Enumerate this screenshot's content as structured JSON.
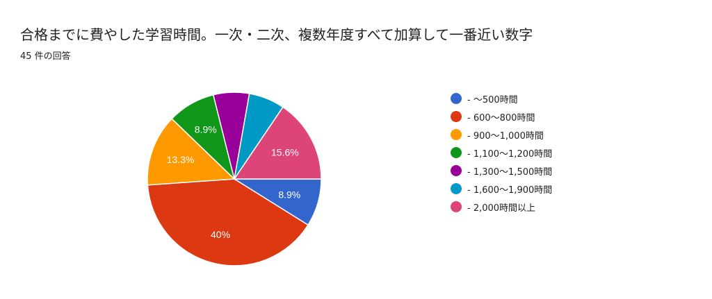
{
  "title": "合格までに費やした学習時間。一次・二次、複数年度すべて加算して一番近い数字",
  "response_count": "45 件の回答",
  "chart_data": {
    "type": "pie",
    "categories": [
      "- 〜500時間",
      "- 600〜800時間",
      "- 900〜1,000時間",
      "- 1,100〜1,200時間",
      "- 1,300〜1,500時間",
      "- 1,600〜1,900時間",
      "- 2,000時間以上"
    ],
    "values": [
      4,
      18,
      6,
      4,
      3,
      3,
      7
    ],
    "labels": [
      "8.9%",
      "40%",
      "13.3%",
      "8.9%",
      "",
      "",
      "15.6%"
    ],
    "colors": [
      "#3366cc",
      "#dc3912",
      "#ff9900",
      "#109618",
      "#990099",
      "#0099c6",
      "#dd4477"
    ],
    "legend_position": "right"
  }
}
